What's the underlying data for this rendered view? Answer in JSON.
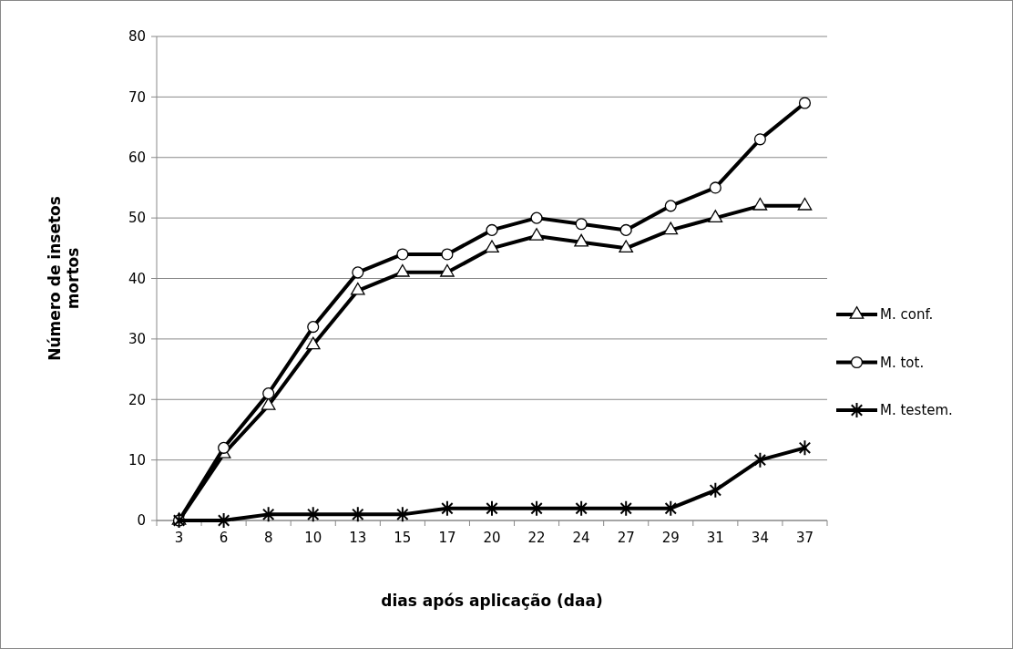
{
  "chart_data": {
    "type": "line",
    "xlabel": "dias após aplicação (daa)",
    "ylabel": "Número de insetos mortos",
    "categories": [
      "3",
      "6",
      "8",
      "10",
      "13",
      "15",
      "17",
      "20",
      "22",
      "24",
      "27",
      "29",
      "31",
      "34",
      "37"
    ],
    "series": [
      {
        "name": "M. conf.",
        "color": "#000000",
        "marker": "triangle",
        "values": [
          0,
          11,
          19,
          29,
          38,
          41,
          41,
          45,
          47,
          46,
          45,
          48,
          50,
          52,
          52
        ]
      },
      {
        "name": "M. tot.",
        "color": "#000000",
        "marker": "circle",
        "values": [
          0,
          12,
          21,
          32,
          41,
          44,
          44,
          48,
          50,
          49,
          48,
          52,
          55,
          63,
          69
        ]
      },
      {
        "name": "M. testem.",
        "color": "#000000",
        "marker": "cross",
        "values": [
          0,
          0,
          1,
          1,
          1,
          1,
          2,
          2,
          2,
          2,
          2,
          2,
          5,
          10,
          12
        ]
      }
    ],
    "ylim": [
      0,
      80
    ],
    "yticks": [
      0,
      10,
      20,
      30,
      40,
      50,
      60,
      70,
      80
    ],
    "grid": "y",
    "legend": "right",
    "line_style": "solid"
  }
}
